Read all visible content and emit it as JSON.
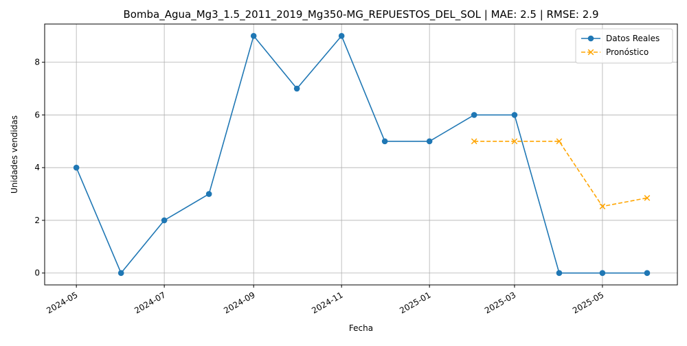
{
  "chart_data": {
    "type": "line",
    "title": "Bomba_Agua_Mg3_1.5_2011_2019_Mg350-MG_REPUESTOS_DEL_SOL | MAE: 2.5 | RMSE: 2.9",
    "xlabel": "Fecha",
    "ylabel": "Unidades vendidas",
    "x_ticks": [
      "2024-05",
      "2024-07",
      "2024-09",
      "2024-11",
      "2025-01",
      "2025-03",
      "2025-05"
    ],
    "y_ticks": [
      0,
      2,
      4,
      6,
      8
    ],
    "xlim": [
      "2024-04-09",
      "2025-06-22"
    ],
    "ylim": [
      -0.45,
      9.45
    ],
    "grid": true,
    "legend_position": "top-right",
    "series": [
      {
        "name": "Datos Reales",
        "color": "#1f77b4",
        "line_style": "solid",
        "marker": "circle",
        "x": [
          "2024-05-01",
          "2024-06-01",
          "2024-07-01",
          "2024-08-01",
          "2024-09-01",
          "2024-10-01",
          "2024-11-01",
          "2024-12-01",
          "2025-01-01",
          "2025-02-01",
          "2025-03-01",
          "2025-04-01",
          "2025-05-01",
          "2025-06-01"
        ],
        "values": [
          4,
          0,
          2,
          3,
          9,
          7,
          9,
          5,
          5,
          6,
          6,
          0,
          0,
          0
        ]
      },
      {
        "name": "Pronóstico",
        "color": "#ffa500",
        "line_style": "dashed",
        "marker": "x",
        "x": [
          "2025-02-01",
          "2025-03-01",
          "2025-04-01",
          "2025-05-01",
          "2025-06-01"
        ],
        "values": [
          5,
          5,
          5,
          2.53,
          2.85
        ]
      }
    ]
  }
}
